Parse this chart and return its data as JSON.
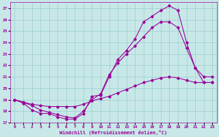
{
  "xlabel": "Windchill (Refroidissement éolien,°C)",
  "xlim": [
    -0.5,
    23.5
  ],
  "ylim": [
    17,
    27.5
  ],
  "yticks": [
    17,
    18,
    19,
    20,
    21,
    22,
    23,
    24,
    25,
    26,
    27
  ],
  "xticks": [
    0,
    1,
    2,
    3,
    4,
    5,
    6,
    7,
    8,
    9,
    10,
    11,
    12,
    13,
    14,
    15,
    16,
    17,
    18,
    19,
    20,
    21,
    22,
    23
  ],
  "bg_color": "#c8e8e8",
  "line_color": "#990099",
  "grid_color": "#99cccc",
  "line1_x": [
    0,
    1,
    2,
    3,
    4,
    5,
    6,
    7,
    8,
    9,
    10,
    11,
    12,
    13,
    14,
    15,
    16,
    17,
    18,
    19,
    20,
    21,
    22,
    23
  ],
  "line1_y": [
    19.0,
    18.7,
    18.1,
    17.8,
    17.8,
    17.5,
    17.3,
    17.3,
    17.8,
    19.3,
    19.4,
    21.0,
    22.5,
    23.3,
    24.3,
    25.8,
    26.3,
    26.8,
    27.2,
    26.8,
    24.0,
    21.8,
    20.5,
    20.5
  ],
  "line2_x": [
    0,
    2,
    3,
    4,
    5,
    6,
    7,
    8,
    9,
    10,
    11,
    12,
    13,
    14,
    15,
    16,
    17,
    18,
    19,
    20,
    21,
    22,
    23
  ],
  "line2_y": [
    19.0,
    18.5,
    18.1,
    17.9,
    17.7,
    17.5,
    17.4,
    18.0,
    19.0,
    19.5,
    21.2,
    22.2,
    23.0,
    23.7,
    24.5,
    25.3,
    25.8,
    25.8,
    25.3,
    23.5,
    21.8,
    21.0,
    21.0
  ],
  "line3_x": [
    0,
    1,
    2,
    3,
    4,
    5,
    6,
    7,
    8,
    9,
    10,
    11,
    12,
    13,
    14,
    15,
    16,
    17,
    18,
    19,
    20,
    21,
    22,
    23
  ],
  "line3_y": [
    19.0,
    18.8,
    18.6,
    18.5,
    18.4,
    18.4,
    18.4,
    18.4,
    18.6,
    18.9,
    19.1,
    19.3,
    19.6,
    19.9,
    20.2,
    20.5,
    20.7,
    20.9,
    21.0,
    20.9,
    20.7,
    20.5,
    20.5,
    20.5
  ]
}
